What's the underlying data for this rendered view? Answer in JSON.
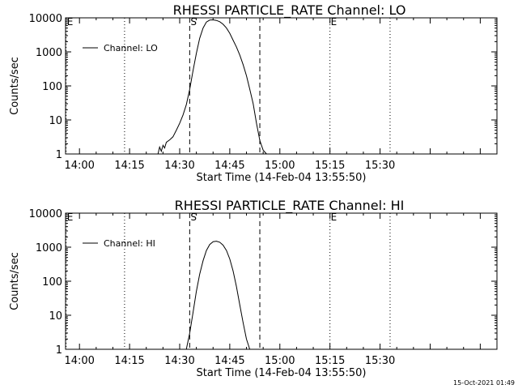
{
  "footer": {
    "timestamp": "15-Oct-2021 01:49"
  },
  "chart_data": [
    {
      "type": "line",
      "title": "RHESSI PARTICLE_RATE Channel: LO",
      "xlabel": "Start Time (14-Feb-04 13:55:50)",
      "ylabel": "Counts/sec",
      "yscale": "log",
      "xlim": [
        "13:55:50",
        "16:05:00"
      ],
      "ylim": [
        1,
        10000
      ],
      "x_ticks": [
        "14:00",
        "14:15",
        "14:30",
        "14:45",
        "15:00",
        "15:15",
        "15:30"
      ],
      "y_ticks": [
        "1",
        "10",
        "100",
        "1000",
        "10000"
      ],
      "legend": {
        "position": "top-left",
        "entries": [
          "Channel: LO"
        ]
      },
      "markers": [
        {
          "label": "E",
          "time": "13:56:00",
          "style": "dotted"
        },
        {
          "label": "",
          "time": "14:13:30",
          "style": "dotted"
        },
        {
          "label": "S",
          "time": "14:33:00",
          "style": "dashed"
        },
        {
          "label": "",
          "time": "14:54:00",
          "style": "dashed"
        },
        {
          "label": "E",
          "time": "15:15:00",
          "style": "dotted"
        },
        {
          "label": "",
          "time": "15:33:00",
          "style": "dotted"
        }
      ],
      "series": [
        {
          "name": "Channel: LO",
          "x": [
            "14:23:30",
            "14:24:00",
            "14:24:30",
            "14:25:00",
            "14:25:30",
            "14:26:00",
            "14:27:00",
            "14:28:00",
            "14:29:00",
            "14:30:00",
            "14:31:00",
            "14:32:00",
            "14:33:00",
            "14:34:00",
            "14:35:00",
            "14:36:00",
            "14:37:00",
            "14:38:00",
            "14:39:00",
            "14:40:00",
            "14:41:00",
            "14:42:00",
            "14:43:00",
            "14:44:00",
            "14:45:00",
            "14:46:00",
            "14:47:00",
            "14:48:00",
            "14:49:00",
            "14:50:00",
            "14:51:00",
            "14:52:00",
            "14:53:00",
            "14:54:00",
            "14:55:00",
            "14:56:00"
          ],
          "y": [
            1,
            1.6,
            1.2,
            1.8,
            1.5,
            2.2,
            2.6,
            3.2,
            5,
            8,
            14,
            28,
            80,
            280,
            900,
            2500,
            5000,
            7500,
            8600,
            8700,
            8400,
            7700,
            6500,
            5000,
            3500,
            2200,
            1400,
            800,
            420,
            200,
            80,
            30,
            8,
            2.5,
            1.3,
            1
          ]
        }
      ]
    },
    {
      "type": "line",
      "title": "RHESSI PARTICLE_RATE Channel: HI",
      "xlabel": "Start Time (14-Feb-04 13:55:50)",
      "ylabel": "Counts/sec",
      "yscale": "log",
      "xlim": [
        "13:55:50",
        "16:05:00"
      ],
      "ylim": [
        1,
        10000
      ],
      "x_ticks": [
        "14:00",
        "14:15",
        "14:30",
        "14:45",
        "15:00",
        "15:15",
        "15:30"
      ],
      "y_ticks": [
        "1",
        "10",
        "100",
        "1000",
        "10000"
      ],
      "legend": {
        "position": "top-left",
        "entries": [
          "Channel: HI"
        ]
      },
      "markers": [
        {
          "label": "E",
          "time": "13:56:00",
          "style": "dotted"
        },
        {
          "label": "",
          "time": "14:13:30",
          "style": "dotted"
        },
        {
          "label": "S",
          "time": "14:33:00",
          "style": "dashed"
        },
        {
          "label": "",
          "time": "14:54:00",
          "style": "dashed"
        },
        {
          "label": "E",
          "time": "15:15:00",
          "style": "dotted"
        },
        {
          "label": "",
          "time": "15:33:00",
          "style": "dotted"
        }
      ],
      "series": [
        {
          "name": "Channel: HI",
          "x": [
            "14:32:00",
            "14:33:00",
            "14:34:00",
            "14:35:00",
            "14:36:00",
            "14:37:00",
            "14:38:00",
            "14:39:00",
            "14:40:00",
            "14:41:00",
            "14:42:00",
            "14:43:00",
            "14:44:00",
            "14:45:00",
            "14:46:00",
            "14:47:00",
            "14:48:00",
            "14:49:00",
            "14:50:00",
            "14:51:00"
          ],
          "y": [
            1,
            3,
            12,
            50,
            160,
            400,
            800,
            1200,
            1450,
            1500,
            1400,
            1150,
            800,
            450,
            200,
            70,
            20,
            6,
            2,
            1
          ]
        }
      ]
    }
  ]
}
